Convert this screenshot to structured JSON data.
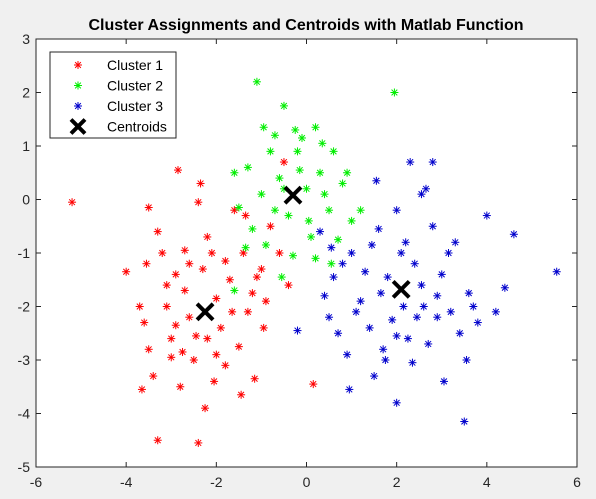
{
  "chart_data": {
    "type": "scatter",
    "title": "Cluster Assignments and Centroids with Matlab Function",
    "xlabel": "",
    "ylabel": "",
    "xlim": [
      -6,
      6
    ],
    "ylim": [
      -5,
      3
    ],
    "xticks": [
      -6,
      -4,
      -2,
      0,
      2,
      4,
      6
    ],
    "yticks": [
      -5,
      -4,
      -3,
      -2,
      -1,
      0,
      1,
      2,
      3
    ],
    "grid": false,
    "legend_position": "top-left",
    "series": [
      {
        "name": "Cluster 1",
        "marker": "asterisk",
        "color": "#ff0000",
        "points": [
          [
            -5.2,
            -0.05
          ],
          [
            -4.0,
            -1.35
          ],
          [
            -3.55,
            -1.2
          ],
          [
            -3.5,
            -0.15
          ],
          [
            -3.3,
            -4.5
          ],
          [
            -2.4,
            -4.55
          ],
          [
            -3.6,
            -2.3
          ],
          [
            -3.5,
            -2.8
          ],
          [
            -3.4,
            -3.3
          ],
          [
            -3.2,
            -1.0
          ],
          [
            -3.1,
            -2.0
          ],
          [
            -3.0,
            -2.6
          ],
          [
            -2.9,
            -1.4
          ],
          [
            -2.85,
            0.55
          ],
          [
            -2.8,
            -3.5
          ],
          [
            -2.7,
            -1.7
          ],
          [
            -2.6,
            -2.2
          ],
          [
            -2.5,
            -3.0
          ],
          [
            -2.4,
            -0.05
          ],
          [
            -2.35,
            0.3
          ],
          [
            -2.3,
            -1.3
          ],
          [
            -2.2,
            -2.6
          ],
          [
            -2.1,
            -1.0
          ],
          [
            -2.05,
            -3.4
          ],
          [
            -2.0,
            -1.85
          ],
          [
            -1.9,
            -2.4
          ],
          [
            -1.8,
            -3.1
          ],
          [
            -1.7,
            -1.5
          ],
          [
            -1.6,
            -0.2
          ],
          [
            -1.5,
            -2.75
          ],
          [
            -1.45,
            -3.65
          ],
          [
            -1.4,
            -1.0
          ],
          [
            -1.3,
            -2.1
          ],
          [
            -1.2,
            -1.75
          ],
          [
            -1.15,
            -3.35
          ],
          [
            -1.0,
            -1.3
          ],
          [
            -0.95,
            -2.4
          ],
          [
            -0.9,
            -1.9
          ],
          [
            -0.8,
            -0.5
          ],
          [
            -0.5,
            0.7
          ],
          [
            -0.4,
            -1.6
          ],
          [
            -0.6,
            -1.0
          ],
          [
            0.15,
            -3.45
          ],
          [
            -3.7,
            -2.0
          ],
          [
            -3.65,
            -3.55
          ],
          [
            -2.25,
            -3.9
          ],
          [
            -2.75,
            -2.85
          ],
          [
            -1.65,
            -2.1
          ],
          [
            -3.3,
            -0.6
          ],
          [
            -1.35,
            -0.3
          ],
          [
            -3.1,
            -1.6
          ],
          [
            -2.2,
            -0.7
          ],
          [
            -2.6,
            -1.2
          ],
          [
            -3.0,
            -2.95
          ],
          [
            -1.1,
            -1.45
          ],
          [
            -2.0,
            -2.9
          ],
          [
            -1.8,
            -1.15
          ],
          [
            -2.9,
            -2.35
          ],
          [
            -2.45,
            -2.55
          ],
          [
            -2.7,
            -0.95
          ]
        ]
      },
      {
        "name": "Cluster 2",
        "marker": "asterisk",
        "color": "#00ee00",
        "points": [
          [
            -1.1,
            2.2
          ],
          [
            1.95,
            2.0
          ],
          [
            -0.5,
            1.75
          ],
          [
            -0.1,
            1.15
          ],
          [
            0.2,
            1.35
          ],
          [
            -1.3,
            0.6
          ],
          [
            -1.0,
            0.1
          ],
          [
            -0.8,
            0.9
          ],
          [
            -0.6,
            0.4
          ],
          [
            -0.4,
            -0.3
          ],
          [
            -0.2,
            0.9
          ],
          [
            0.0,
            0.2
          ],
          [
            0.1,
            -0.7
          ],
          [
            0.3,
            0.5
          ],
          [
            0.5,
            -0.2
          ],
          [
            0.6,
            0.9
          ],
          [
            0.8,
            0.3
          ],
          [
            1.0,
            -0.4
          ],
          [
            -1.5,
            -0.15
          ],
          [
            -1.2,
            -0.55
          ],
          [
            -0.9,
            -0.85
          ],
          [
            -0.7,
            -0.2
          ],
          [
            -0.5,
            0.2
          ],
          [
            -0.3,
            -1.05
          ],
          [
            0.2,
            -1.1
          ],
          [
            0.4,
            0.1
          ],
          [
            0.7,
            -0.75
          ],
          [
            -0.15,
            0.55
          ],
          [
            0.05,
            -0.4
          ],
          [
            -1.6,
            -1.7
          ],
          [
            -1.35,
            -0.9
          ],
          [
            -0.55,
            -1.45
          ],
          [
            0.55,
            -1.2
          ],
          [
            -0.95,
            1.35
          ],
          [
            -0.25,
            1.3
          ],
          [
            0.35,
            1.05
          ],
          [
            -1.6,
            0.5
          ],
          [
            -0.7,
            1.2
          ],
          [
            1.2,
            -0.2
          ],
          [
            0.9,
            0.5
          ]
        ]
      },
      {
        "name": "Cluster 3",
        "marker": "asterisk",
        "color": "#0000cc",
        "points": [
          [
            5.55,
            -1.35
          ],
          [
            4.6,
            -0.65
          ],
          [
            4.4,
            -1.65
          ],
          [
            3.5,
            -4.15
          ],
          [
            2.8,
            0.7
          ],
          [
            2.3,
            0.7
          ],
          [
            2.0,
            -0.2
          ],
          [
            2.2,
            -0.8
          ],
          [
            2.4,
            -1.2
          ],
          [
            2.6,
            -2.0
          ],
          [
            2.8,
            -0.5
          ],
          [
            3.0,
            -1.4
          ],
          [
            3.2,
            -2.1
          ],
          [
            3.4,
            -2.5
          ],
          [
            3.6,
            -1.75
          ],
          [
            3.8,
            -2.3
          ],
          [
            4.0,
            -0.3
          ],
          [
            4.2,
            -2.1
          ],
          [
            1.0,
            -1.0
          ],
          [
            1.2,
            -1.9
          ],
          [
            1.4,
            -2.4
          ],
          [
            1.5,
            -3.3
          ],
          [
            1.6,
            -0.55
          ],
          [
            1.7,
            -2.8
          ],
          [
            1.8,
            -1.45
          ],
          [
            1.9,
            -2.25
          ],
          [
            2.0,
            -3.8
          ],
          [
            2.1,
            -1.0
          ],
          [
            2.25,
            -2.6
          ],
          [
            2.35,
            -3.05
          ],
          [
            2.55,
            -1.6
          ],
          [
            2.7,
            -2.7
          ],
          [
            2.9,
            -1.8
          ],
          [
            3.05,
            -3.4
          ],
          [
            3.3,
            -0.8
          ],
          [
            3.55,
            -3.0
          ],
          [
            0.6,
            -1.45
          ],
          [
            0.5,
            -2.2
          ],
          [
            0.4,
            -1.8
          ],
          [
            0.7,
            -2.5
          ],
          [
            0.9,
            -2.9
          ],
          [
            1.1,
            -2.1
          ],
          [
            -0.2,
            -2.45
          ],
          [
            0.3,
            -0.6
          ],
          [
            1.55,
            0.35
          ],
          [
            2.55,
            0.1
          ],
          [
            2.65,
            0.2
          ],
          [
            1.3,
            -1.35
          ],
          [
            0.8,
            -1.2
          ],
          [
            1.65,
            -1.75
          ],
          [
            2.15,
            -2.0
          ],
          [
            2.45,
            -2.2
          ],
          [
            3.15,
            -1.0
          ],
          [
            0.95,
            -3.55
          ],
          [
            2.9,
            -2.2
          ],
          [
            1.45,
            -0.85
          ],
          [
            2.0,
            -2.55
          ],
          [
            3.7,
            -2.0
          ],
          [
            1.75,
            -3.0
          ],
          [
            0.55,
            -0.9
          ]
        ]
      },
      {
        "name": "Centroids",
        "marker": "x",
        "color": "#000000",
        "points": [
          [
            -2.25,
            -2.1
          ],
          [
            -0.3,
            0.08
          ],
          [
            2.1,
            -1.68
          ]
        ]
      }
    ]
  }
}
